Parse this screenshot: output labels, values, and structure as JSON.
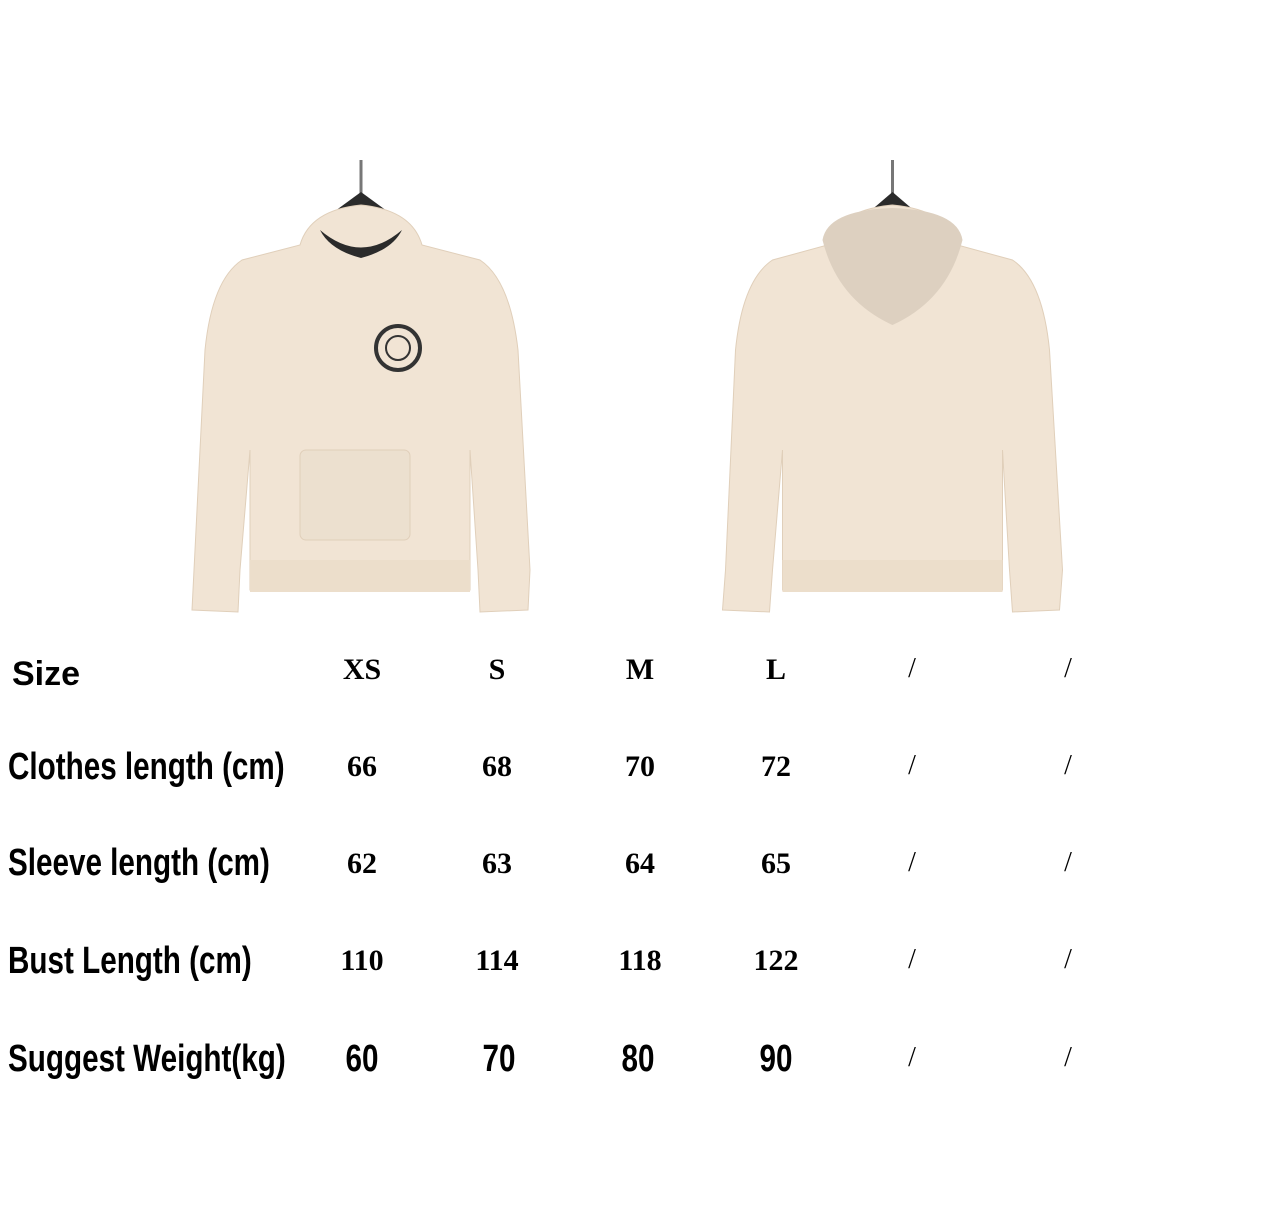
{
  "colors": {
    "garment": "#f1e4d4",
    "garment_shadow": "#e2d1bd",
    "hood_inner": "#ddd0c0",
    "hanger": "#2b2b2b"
  },
  "photos": [
    {
      "view": "front"
    },
    {
      "view": "back"
    }
  ],
  "table": {
    "columns": [
      "XS",
      "S",
      "M",
      "L",
      "/",
      "/"
    ],
    "header_label": "Size",
    "rows": [
      {
        "label": "Clothes length  (cm)",
        "values": [
          "66",
          "68",
          "70",
          "72",
          "/",
          "/"
        ]
      },
      {
        "label": "Sleeve length (cm)",
        "values": [
          "62",
          "63",
          "64",
          "65",
          "/",
          "/"
        ]
      },
      {
        "label": "Bust Length  (cm)",
        "values": [
          "110",
          "114",
          "118",
          "122",
          "/",
          "/"
        ]
      },
      {
        "label": "Suggest Weight(kg)",
        "values": [
          "60",
          "70",
          "80",
          "90",
          "/",
          "/"
        ]
      }
    ]
  }
}
